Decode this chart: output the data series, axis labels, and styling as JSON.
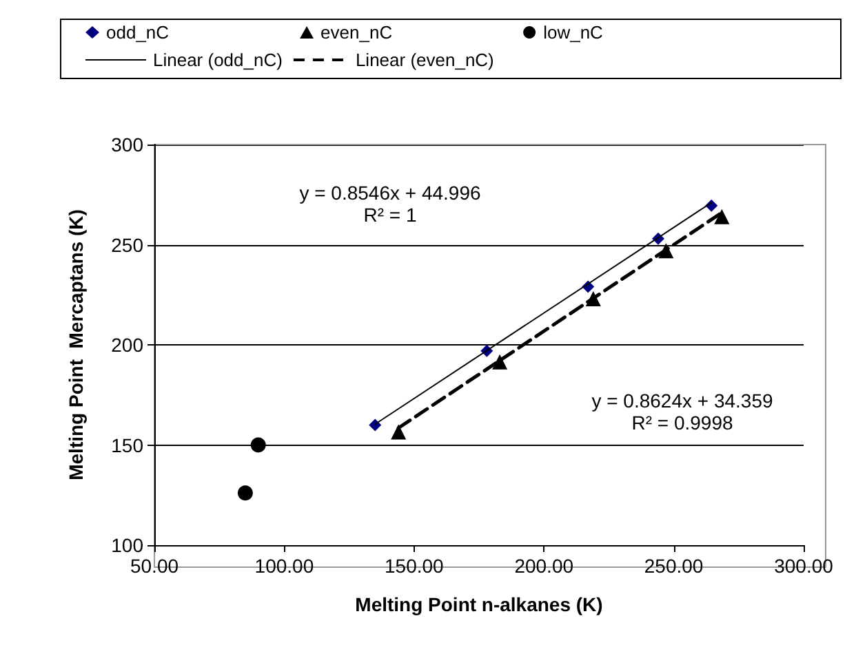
{
  "chart_data": {
    "type": "scatter",
    "xlabel": "Melting Point n-alkanes (K)",
    "ylabel": "Melting Point  Mercaptans (K)",
    "xlim": [
      50,
      300
    ],
    "xticks": [
      {
        "value": 50,
        "label": "50.00"
      },
      {
        "value": 100,
        "label": "100.00"
      },
      {
        "value": 150,
        "label": "150.00"
      },
      {
        "value": 200,
        "label": "200.00"
      },
      {
        "value": 250,
        "label": "250.00"
      },
      {
        "value": 300,
        "label": "300.00"
      }
    ],
    "ylim": [
      100,
      300
    ],
    "yticks": [
      100,
      150,
      200,
      250,
      300
    ],
    "grid": "y",
    "legend": "top",
    "series": [
      {
        "name": "odd_nC",
        "marker": "diamond",
        "color": "#000080",
        "x": [
          135,
          178,
          217,
          244,
          264.5
        ],
        "values": [
          160,
          197,
          229,
          253,
          269.5
        ]
      },
      {
        "name": "even_nC",
        "marker": "triangle",
        "color": "#000000",
        "x": [
          144,
          183,
          219,
          247,
          268.5
        ],
        "values": [
          156.5,
          191.5,
          223,
          247,
          264
        ]
      },
      {
        "name": "low_nC",
        "marker": "circle",
        "color": "#000000",
        "x": [
          85,
          90
        ],
        "values": [
          126,
          150
        ]
      },
      {
        "name": "Linear (odd_nC)",
        "type": "line",
        "marker": "none",
        "line_style": "solid",
        "color": "#000000",
        "x": [
          135,
          264.5
        ],
        "values": [
          160.4,
          271
        ]
      },
      {
        "name": "Linear (even_nC)",
        "type": "line",
        "marker": "none",
        "line_style": "dashed",
        "color": "#000000",
        "x": [
          144,
          268.5
        ],
        "values": [
          158.5,
          266
        ]
      }
    ],
    "annotations": [
      "y = 0.8546x + 44.996",
      "R² = 1",
      "y = 0.8624x + 34.359",
      "R² = 0.9998"
    ]
  }
}
